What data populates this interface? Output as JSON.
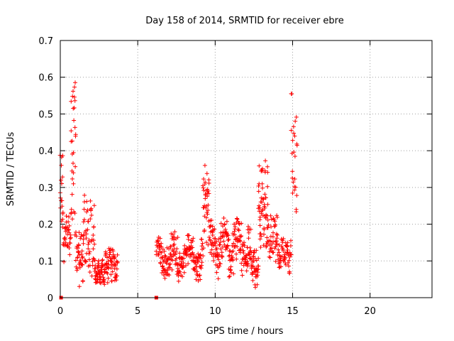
{
  "chart_data": {
    "type": "scatter",
    "title": "Day 158 of 2014, SRMTID for receiver ebre",
    "xlabel": "GPS time / hours",
    "ylabel": "SRMTID / TECUs",
    "xlim": [
      0,
      24
    ],
    "ylim": [
      0,
      0.7
    ],
    "xticks": [
      0,
      5,
      10,
      15,
      20
    ],
    "yticks": [
      0,
      0.1,
      0.2,
      0.3,
      0.4,
      0.5,
      0.6,
      0.7
    ],
    "grid": true,
    "marker": "+",
    "colors": {
      "points": "#ff0000",
      "grid": "#a0a0a0",
      "axes": "#000000"
    },
    "series": [
      {
        "name": "SRMTID",
        "segments": [
          {
            "x_start": 0.0,
            "x_end": 0.15,
            "base": 0.3,
            "amp": 0.12,
            "n": 14
          },
          {
            "x_start": 0.15,
            "x_end": 0.7,
            "base": 0.17,
            "amp": 0.08,
            "n": 40
          },
          {
            "x_start": 0.7,
            "x_end": 1.0,
            "base": 0.4,
            "amp": 0.26,
            "n": 30
          },
          {
            "x_start": 1.0,
            "x_end": 1.5,
            "base": 0.11,
            "amp": 0.08,
            "n": 40
          },
          {
            "x_start": 1.5,
            "x_end": 2.2,
            "base": 0.18,
            "amp": 0.13,
            "n": 50
          },
          {
            "x_start": 2.2,
            "x_end": 2.9,
            "base": 0.07,
            "amp": 0.04,
            "n": 60
          },
          {
            "x_start": 2.9,
            "x_end": 3.7,
            "base": 0.09,
            "amp": 0.06,
            "n": 60
          },
          {
            "x_start": 6.2,
            "x_end": 9.2,
            "base": 0.11,
            "amp": 0.07,
            "n": 220
          },
          {
            "x_start": 9.2,
            "x_end": 9.6,
            "base": 0.25,
            "amp": 0.12,
            "n": 35
          },
          {
            "x_start": 9.6,
            "x_end": 12.3,
            "base": 0.14,
            "amp": 0.09,
            "n": 200
          },
          {
            "x_start": 12.3,
            "x_end": 12.8,
            "base": 0.08,
            "amp": 0.06,
            "n": 40
          },
          {
            "x_start": 12.8,
            "x_end": 13.4,
            "base": 0.25,
            "amp": 0.14,
            "n": 60
          },
          {
            "x_start": 13.4,
            "x_end": 14.0,
            "base": 0.16,
            "amp": 0.08,
            "n": 40
          },
          {
            "x_start": 14.0,
            "x_end": 14.9,
            "base": 0.12,
            "amp": 0.06,
            "n": 60
          },
          {
            "x_start": 14.9,
            "x_end": 15.3,
            "base": 0.4,
            "amp": 0.19,
            "n": 25
          }
        ]
      }
    ],
    "markers_at_zero": [
      {
        "x": 0.05,
        "y": 0.0
      },
      {
        "x": 6.2,
        "y": 0.0
      }
    ]
  }
}
